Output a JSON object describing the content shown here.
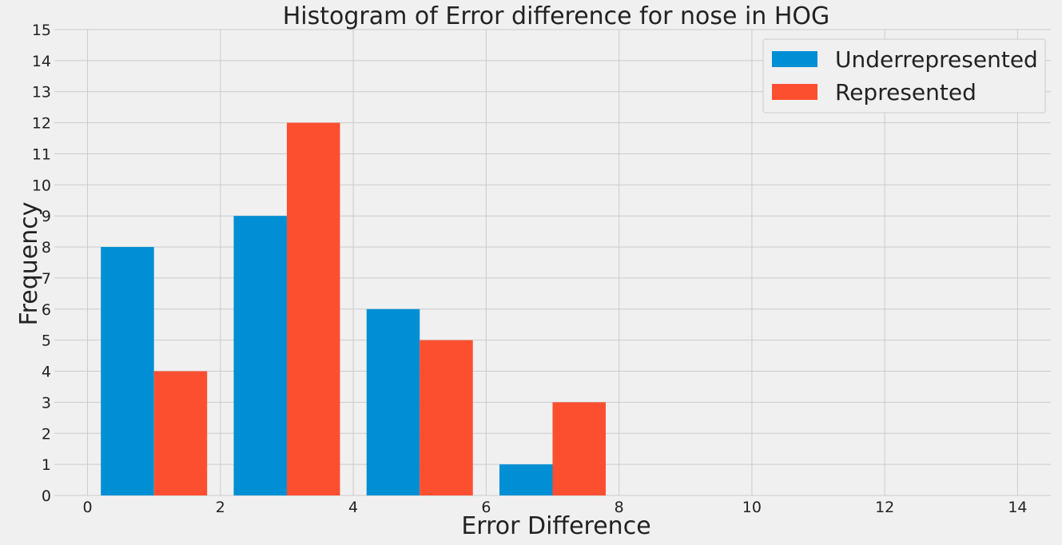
{
  "chart_data": {
    "type": "bar",
    "title": "Histogram of Error difference for nose in HOG",
    "xlabel": "Error Difference",
    "ylabel": "Frequency",
    "xlim": [
      -0.5,
      14.5
    ],
    "ylim": [
      0,
      15
    ],
    "x_ticks": [
      0,
      2,
      4,
      6,
      8,
      10,
      12,
      14
    ],
    "y_ticks": [
      0,
      1,
      2,
      3,
      4,
      5,
      6,
      7,
      8,
      9,
      10,
      11,
      12,
      13,
      14,
      15
    ],
    "bins": [
      {
        "start": 0.2,
        "end": 1.8
      },
      {
        "start": 2.2,
        "end": 3.8
      },
      {
        "start": 4.2,
        "end": 5.8
      },
      {
        "start": 6.2,
        "end": 7.8
      }
    ],
    "series": [
      {
        "name": "Underrepresented",
        "color": "#008fd5",
        "values": [
          8,
          9,
          6,
          1
        ]
      },
      {
        "name": "Represented",
        "color": "#fc4f30",
        "values": [
          4,
          12,
          5,
          3
        ]
      }
    ],
    "grid": true,
    "legend_position": "top-right"
  }
}
